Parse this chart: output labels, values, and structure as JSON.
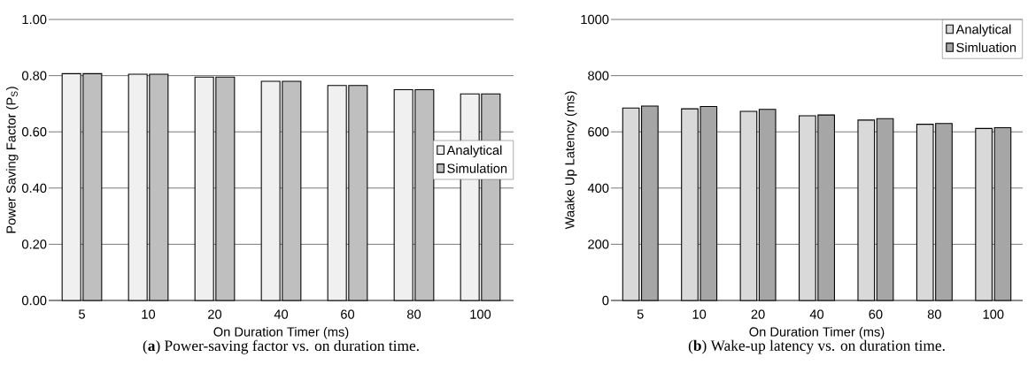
{
  "chart_data": [
    {
      "type": "bar",
      "categories": [
        "5",
        "10",
        "20",
        "40",
        "60",
        "80",
        "100"
      ],
      "series": [
        {
          "name": "Analytical",
          "color": "#f0f0f0",
          "values": [
            0.807,
            0.805,
            0.795,
            0.78,
            0.765,
            0.75,
            0.735
          ]
        },
        {
          "name": "Simulation",
          "color": "#bfbfbf",
          "values": [
            0.807,
            0.805,
            0.795,
            0.78,
            0.765,
            0.75,
            0.735
          ]
        }
      ],
      "xlabel": "On Duration Timer (ms)",
      "ylabel": "Power Saving Factor (P$_{S}$)",
      "ylim": [
        0,
        1
      ],
      "yticks": [
        {
          "value": 0,
          "label": "0.00"
        },
        {
          "value": 0.2,
          "label": "0.20"
        },
        {
          "value": 0.4,
          "label": "0.40"
        },
        {
          "value": 0.6,
          "label": "0.60"
        },
        {
          "value": 0.8,
          "label": "0.80"
        },
        {
          "value": 1,
          "label": "1.00"
        }
      ],
      "grid": "y",
      "legend": "right",
      "annotations": [
        "(**a**) Power-saving factor vs. on duration time."
      ]
    },
    {
      "type": "bar",
      "categories": [
        "5",
        "10",
        "20",
        "40",
        "60",
        "80",
        "100"
      ],
      "series": [
        {
          "name": "Analytical",
          "color": "#d9d9d9",
          "values": [
            685,
            682,
            673,
            657,
            642,
            627,
            612
          ]
        },
        {
          "name": "Simluation",
          "color": "#a6a6a6",
          "values": [
            692,
            690,
            680,
            660,
            647,
            630,
            615
          ]
        }
      ],
      "xlabel": "On Duration Timer (ms)",
      "ylabel": "Waake Up Latency (ms)",
      "ylim": [
        0,
        1000
      ],
      "yticks": [
        0,
        200,
        400,
        600,
        800,
        1000
      ],
      "grid": "y",
      "legend": "top right",
      "annotations": [
        "(**b**) Wake-up latency vs. on duration time."
      ]
    }
  ]
}
